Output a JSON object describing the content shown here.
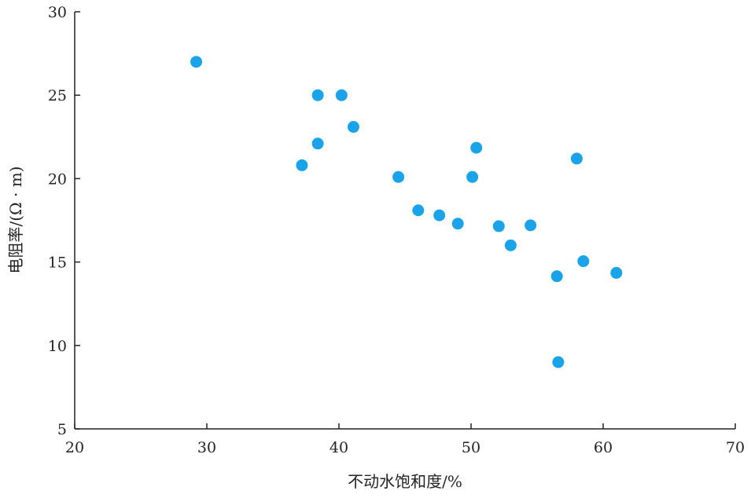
{
  "chart_data": {
    "type": "scatter",
    "title": "",
    "xlabel": "不动水饱和度/%",
    "ylabel": "电阻率/(Ω · m)",
    "xlim": [
      20,
      70
    ],
    "ylim": [
      5,
      30
    ],
    "xticks": [
      20,
      30,
      40,
      50,
      60,
      70
    ],
    "yticks": [
      5,
      10,
      15,
      20,
      25,
      30
    ],
    "grid": false,
    "marker_color": "#1aa3e8",
    "points": [
      {
        "x": 29.2,
        "y": 27.0
      },
      {
        "x": 38.4,
        "y": 25.0
      },
      {
        "x": 40.2,
        "y": 25.0
      },
      {
        "x": 38.4,
        "y": 22.1
      },
      {
        "x": 41.1,
        "y": 23.1
      },
      {
        "x": 37.2,
        "y": 20.8
      },
      {
        "x": 44.5,
        "y": 20.1
      },
      {
        "x": 50.4,
        "y": 21.85
      },
      {
        "x": 50.1,
        "y": 20.1
      },
      {
        "x": 58.0,
        "y": 21.2
      },
      {
        "x": 46.0,
        "y": 18.1
      },
      {
        "x": 47.6,
        "y": 17.8
      },
      {
        "x": 49.0,
        "y": 17.3
      },
      {
        "x": 52.1,
        "y": 17.15
      },
      {
        "x": 54.5,
        "y": 17.2
      },
      {
        "x": 53.0,
        "y": 16.0
      },
      {
        "x": 56.5,
        "y": 14.15
      },
      {
        "x": 58.5,
        "y": 15.05
      },
      {
        "x": 61.0,
        "y": 14.35
      },
      {
        "x": 56.6,
        "y": 9.0
      }
    ]
  }
}
